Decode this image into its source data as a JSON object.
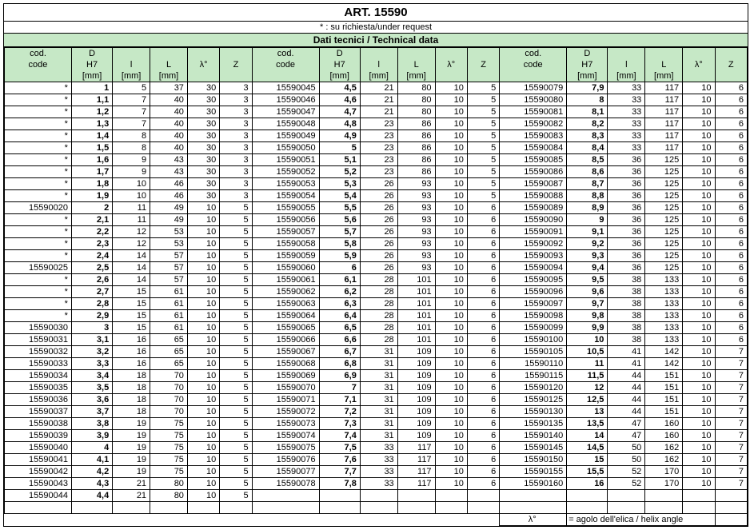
{
  "title": "ART. 15590",
  "subtitle": "* : su richiesta/under request",
  "techdata": "Dati tecnici / Technical data",
  "headers": {
    "code": "cod.\ncode",
    "d": "D\nH7\n[mm]",
    "l1": "l\n[mm]",
    "l2": "L\n[mm]",
    "lambda": "λ°",
    "z": "Z"
  },
  "legend": {
    "key": "λ°",
    "text": "= agolo dell'elica / helix angle"
  },
  "data1": [
    [
      "*",
      "1",
      "5",
      "37",
      "30",
      "3"
    ],
    [
      "*",
      "1,1",
      "7",
      "40",
      "30",
      "3"
    ],
    [
      "*",
      "1,2",
      "7",
      "40",
      "30",
      "3"
    ],
    [
      "*",
      "1,3",
      "7",
      "40",
      "30",
      "3"
    ],
    [
      "*",
      "1,4",
      "8",
      "40",
      "30",
      "3"
    ],
    [
      "*",
      "1,5",
      "8",
      "40",
      "30",
      "3"
    ],
    [
      "*",
      "1,6",
      "9",
      "43",
      "30",
      "3"
    ],
    [
      "*",
      "1,7",
      "9",
      "43",
      "30",
      "3"
    ],
    [
      "*",
      "1,8",
      "10",
      "46",
      "30",
      "3"
    ],
    [
      "*",
      "1,9",
      "10",
      "46",
      "30",
      "3"
    ],
    [
      "15590020",
      "2",
      "11",
      "49",
      "10",
      "5"
    ],
    [
      "*",
      "2,1",
      "11",
      "49",
      "10",
      "5"
    ],
    [
      "*",
      "2,2",
      "12",
      "53",
      "10",
      "5"
    ],
    [
      "*",
      "2,3",
      "12",
      "53",
      "10",
      "5"
    ],
    [
      "*",
      "2,4",
      "14",
      "57",
      "10",
      "5"
    ],
    [
      "15590025",
      "2,5",
      "14",
      "57",
      "10",
      "5"
    ],
    [
      "*",
      "2,6",
      "14",
      "57",
      "10",
      "5"
    ],
    [
      "*",
      "2,7",
      "15",
      "61",
      "10",
      "5"
    ],
    [
      "*",
      "2,8",
      "15",
      "61",
      "10",
      "5"
    ],
    [
      "*",
      "2,9",
      "15",
      "61",
      "10",
      "5"
    ],
    [
      "15590030",
      "3",
      "15",
      "61",
      "10",
      "5"
    ],
    [
      "15590031",
      "3,1",
      "16",
      "65",
      "10",
      "5"
    ],
    [
      "15590032",
      "3,2",
      "16",
      "65",
      "10",
      "5"
    ],
    [
      "15590033",
      "3,3",
      "16",
      "65",
      "10",
      "5"
    ],
    [
      "15590034",
      "3,4",
      "18",
      "70",
      "10",
      "5"
    ],
    [
      "15590035",
      "3,5",
      "18",
      "70",
      "10",
      "5"
    ],
    [
      "15590036",
      "3,6",
      "18",
      "70",
      "10",
      "5"
    ],
    [
      "15590037",
      "3,7",
      "18",
      "70",
      "10",
      "5"
    ],
    [
      "15590038",
      "3,8",
      "19",
      "75",
      "10",
      "5"
    ],
    [
      "15590039",
      "3,9",
      "19",
      "75",
      "10",
      "5"
    ],
    [
      "15590040",
      "4",
      "19",
      "75",
      "10",
      "5"
    ],
    [
      "15590041",
      "4,1",
      "19",
      "75",
      "10",
      "5"
    ],
    [
      "15590042",
      "4,2",
      "19",
      "75",
      "10",
      "5"
    ],
    [
      "15590043",
      "4,3",
      "21",
      "80",
      "10",
      "5"
    ],
    [
      "15590044",
      "4,4",
      "21",
      "80",
      "10",
      "5"
    ]
  ],
  "data2": [
    [
      "15590045",
      "4,5",
      "21",
      "80",
      "10",
      "5"
    ],
    [
      "15590046",
      "4,6",
      "21",
      "80",
      "10",
      "5"
    ],
    [
      "15590047",
      "4,7",
      "21",
      "80",
      "10",
      "5"
    ],
    [
      "15590048",
      "4,8",
      "23",
      "86",
      "10",
      "5"
    ],
    [
      "15590049",
      "4,9",
      "23",
      "86",
      "10",
      "5"
    ],
    [
      "15590050",
      "5",
      "23",
      "86",
      "10",
      "5"
    ],
    [
      "15590051",
      "5,1",
      "23",
      "86",
      "10",
      "5"
    ],
    [
      "15590052",
      "5,2",
      "23",
      "86",
      "10",
      "5"
    ],
    [
      "15590053",
      "5,3",
      "26",
      "93",
      "10",
      "5"
    ],
    [
      "15590054",
      "5,4",
      "26",
      "93",
      "10",
      "5"
    ],
    [
      "15590055",
      "5,5",
      "26",
      "93",
      "10",
      "6"
    ],
    [
      "15590056",
      "5,6",
      "26",
      "93",
      "10",
      "6"
    ],
    [
      "15590057",
      "5,7",
      "26",
      "93",
      "10",
      "6"
    ],
    [
      "15590058",
      "5,8",
      "26",
      "93",
      "10",
      "6"
    ],
    [
      "15590059",
      "5,9",
      "26",
      "93",
      "10",
      "6"
    ],
    [
      "15590060",
      "6",
      "26",
      "93",
      "10",
      "6"
    ],
    [
      "15590061",
      "6,1",
      "28",
      "101",
      "10",
      "6"
    ],
    [
      "15590062",
      "6,2",
      "28",
      "101",
      "10",
      "6"
    ],
    [
      "15590063",
      "6,3",
      "28",
      "101",
      "10",
      "6"
    ],
    [
      "15590064",
      "6,4",
      "28",
      "101",
      "10",
      "6"
    ],
    [
      "15590065",
      "6,5",
      "28",
      "101",
      "10",
      "6"
    ],
    [
      "15590066",
      "6,6",
      "28",
      "101",
      "10",
      "6"
    ],
    [
      "15590067",
      "6,7",
      "31",
      "109",
      "10",
      "6"
    ],
    [
      "15590068",
      "6,8",
      "31",
      "109",
      "10",
      "6"
    ],
    [
      "15590069",
      "6,9",
      "31",
      "109",
      "10",
      "6"
    ],
    [
      "15590070",
      "7",
      "31",
      "109",
      "10",
      "6"
    ],
    [
      "15590071",
      "7,1",
      "31",
      "109",
      "10",
      "6"
    ],
    [
      "15590072",
      "7,2",
      "31",
      "109",
      "10",
      "6"
    ],
    [
      "15590073",
      "7,3",
      "31",
      "109",
      "10",
      "6"
    ],
    [
      "15590074",
      "7,4",
      "31",
      "109",
      "10",
      "6"
    ],
    [
      "15590075",
      "7,5",
      "33",
      "117",
      "10",
      "6"
    ],
    [
      "15590076",
      "7,6",
      "33",
      "117",
      "10",
      "6"
    ],
    [
      "15590077",
      "7,7",
      "33",
      "117",
      "10",
      "6"
    ],
    [
      "15590078",
      "7,8",
      "33",
      "117",
      "10",
      "6"
    ]
  ],
  "data3": [
    [
      "15590079",
      "7,9",
      "33",
      "117",
      "10",
      "6"
    ],
    [
      "15590080",
      "8",
      "33",
      "117",
      "10",
      "6"
    ],
    [
      "15590081",
      "8,1",
      "33",
      "117",
      "10",
      "6"
    ],
    [
      "15590082",
      "8,2",
      "33",
      "117",
      "10",
      "6"
    ],
    [
      "15590083",
      "8,3",
      "33",
      "117",
      "10",
      "6"
    ],
    [
      "15590084",
      "8,4",
      "33",
      "117",
      "10",
      "6"
    ],
    [
      "15590085",
      "8,5",
      "36",
      "125",
      "10",
      "6"
    ],
    [
      "15590086",
      "8,6",
      "36",
      "125",
      "10",
      "6"
    ],
    [
      "15590087",
      "8,7",
      "36",
      "125",
      "10",
      "6"
    ],
    [
      "15590088",
      "8,8",
      "36",
      "125",
      "10",
      "6"
    ],
    [
      "15590089",
      "8,9",
      "36",
      "125",
      "10",
      "6"
    ],
    [
      "15590090",
      "9",
      "36",
      "125",
      "10",
      "6"
    ],
    [
      "15590091",
      "9,1",
      "36",
      "125",
      "10",
      "6"
    ],
    [
      "15590092",
      "9,2",
      "36",
      "125",
      "10",
      "6"
    ],
    [
      "15590093",
      "9,3",
      "36",
      "125",
      "10",
      "6"
    ],
    [
      "15590094",
      "9,4",
      "36",
      "125",
      "10",
      "6"
    ],
    [
      "15590095",
      "9,5",
      "38",
      "133",
      "10",
      "6"
    ],
    [
      "15590096",
      "9,6",
      "38",
      "133",
      "10",
      "6"
    ],
    [
      "15590097",
      "9,7",
      "38",
      "133",
      "10",
      "6"
    ],
    [
      "15590098",
      "9,8",
      "38",
      "133",
      "10",
      "6"
    ],
    [
      "15590099",
      "9,9",
      "38",
      "133",
      "10",
      "6"
    ],
    [
      "15590100",
      "10",
      "38",
      "133",
      "10",
      "6"
    ],
    [
      "15590105",
      "10,5",
      "41",
      "142",
      "10",
      "7"
    ],
    [
      "15590110",
      "11",
      "41",
      "142",
      "10",
      "7"
    ],
    [
      "15590115",
      "11,5",
      "44",
      "151",
      "10",
      "7"
    ],
    [
      "15590120",
      "12",
      "44",
      "151",
      "10",
      "7"
    ],
    [
      "15590125",
      "12,5",
      "44",
      "151",
      "10",
      "7"
    ],
    [
      "15590130",
      "13",
      "44",
      "151",
      "10",
      "7"
    ],
    [
      "15590135",
      "13,5",
      "47",
      "160",
      "10",
      "7"
    ],
    [
      "15590140",
      "14",
      "47",
      "160",
      "10",
      "7"
    ],
    [
      "15590145",
      "14,5",
      "50",
      "162",
      "10",
      "7"
    ],
    [
      "15590150",
      "15",
      "50",
      "162",
      "10",
      "7"
    ],
    [
      "15590155",
      "15,5",
      "52",
      "170",
      "10",
      "7"
    ],
    [
      "15590160",
      "16",
      "52",
      "170",
      "10",
      "7"
    ]
  ]
}
